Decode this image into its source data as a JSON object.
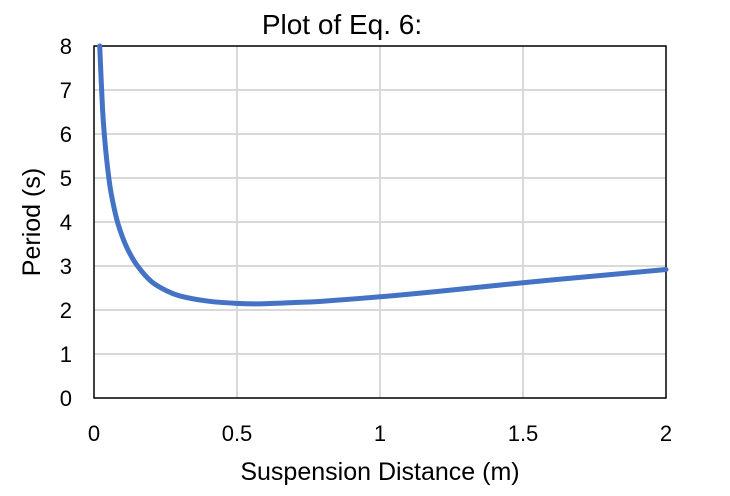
{
  "chart_data": {
    "type": "line",
    "title": "Plot of Eq. 6:",
    "xlabel": "Suspension Distance (m)",
    "ylabel": "Period (s)",
    "xlim": [
      0,
      2
    ],
    "ylim": [
      0,
      8
    ],
    "x_ticks": [
      "0",
      "0.5",
      "1",
      "1.5",
      "2"
    ],
    "y_ticks": [
      "0",
      "1",
      "2",
      "3",
      "4",
      "5",
      "6",
      "7",
      "8"
    ],
    "grid": true,
    "legend": "none",
    "series": [
      {
        "color": "#4472C4",
        "x": [
          0.02,
          0.03,
          0.04,
          0.05,
          0.06,
          0.08,
          0.1,
          0.12,
          0.15,
          0.2,
          0.25,
          0.3,
          0.4,
          0.5,
          0.58,
          0.7,
          0.8,
          1.0,
          1.2,
          1.5,
          1.8,
          2.0
        ],
        "y": [
          8.0,
          6.55,
          5.7,
          5.1,
          4.65,
          4.05,
          3.65,
          3.35,
          3.02,
          2.65,
          2.45,
          2.32,
          2.2,
          2.15,
          2.14,
          2.17,
          2.2,
          2.3,
          2.42,
          2.62,
          2.8,
          2.92
        ]
      }
    ]
  }
}
